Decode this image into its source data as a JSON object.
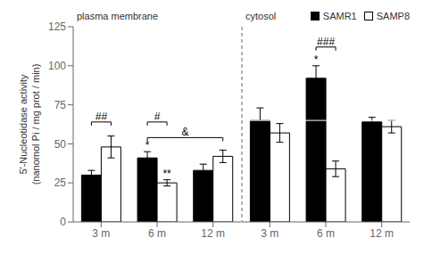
{
  "chart_data": [
    {
      "type": "bar",
      "title": "plasma membrane",
      "y_label": "5'-Nucleotidase activity\n(nanomol Pi / mg prot / min)",
      "categories": [
        "3 m",
        "6 m",
        "12 m"
      ],
      "series": [
        {
          "name": "SAMR1",
          "color": "#000000",
          "values": [
            30,
            41,
            33
          ],
          "errors": [
            3,
            4,
            4
          ]
        },
        {
          "name": "SAMP8",
          "color": "#ffffff",
          "values": [
            48,
            25,
            42
          ],
          "errors": [
            7,
            2,
            4
          ]
        }
      ],
      "ylim": [
        0,
        125
      ],
      "yticks": [
        0,
        25,
        50,
        75,
        100,
        125
      ],
      "grid": false,
      "reference_line": 65,
      "annotations": [
        {
          "text": "##",
          "y": 64,
          "from": {
            "category": "3 m",
            "series": "SAMR1"
          },
          "to": {
            "category": "3 m",
            "series": "SAMP8"
          }
        },
        {
          "text": "#",
          "y": 64,
          "from": {
            "category": "6 m",
            "series": "SAMR1"
          },
          "to": {
            "category": "6 m",
            "series": "SAMP8"
          }
        },
        {
          "text": "*",
          "category": "6 m",
          "series": "SAMR1"
        },
        {
          "text": "**",
          "category": "6 m",
          "series": "SAMP8"
        },
        {
          "text": "&",
          "y": 54,
          "from": {
            "category": "6 m",
            "series": "SAMR1"
          },
          "to": {
            "category": "12 m",
            "series": "SAMP8"
          }
        }
      ]
    },
    {
      "type": "bar",
      "title": "cytosol",
      "categories": [
        "3 m",
        "6 m",
        "12 m"
      ],
      "series": [
        {
          "name": "SAMR1",
          "color": "#000000",
          "values": [
            65,
            92,
            64
          ],
          "errors": [
            8,
            8,
            3
          ]
        },
        {
          "name": "SAMP8",
          "color": "#ffffff",
          "values": [
            57,
            34,
            61
          ],
          "errors": [
            6,
            5,
            4
          ]
        }
      ],
      "ylim": [
        0,
        125
      ],
      "yticks": [
        0,
        25,
        50,
        75,
        100,
        125
      ],
      "grid": false,
      "tick_labels": "x",
      "reference_line": 65,
      "legend": "upper right",
      "annotations": [
        {
          "text": "*",
          "category": "6 m",
          "series": "SAMR1"
        },
        {
          "text": "###",
          "y": 112,
          "from": {
            "category": "6 m",
            "series": "SAMR1"
          },
          "to": {
            "category": "6 m",
            "series": "SAMP8"
          }
        }
      ]
    }
  ]
}
